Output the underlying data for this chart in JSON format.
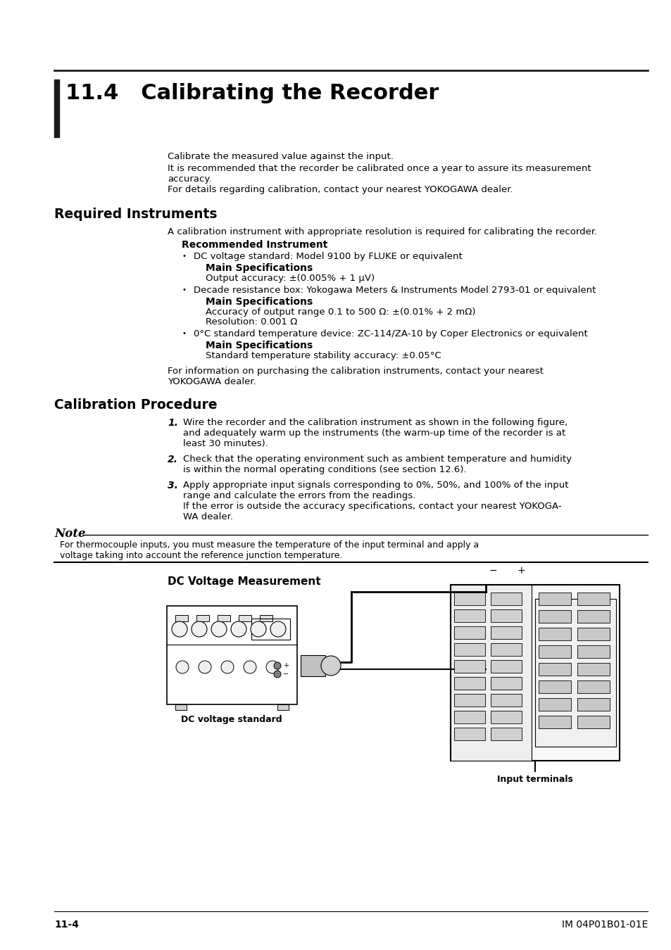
{
  "bg_color": "#ffffff",
  "title": "11.4   Calibrating the Recorder",
  "section1_heading": "Required Instruments",
  "section2_heading": "Calibration Procedure",
  "intro_line1": "Calibrate the measured value against the input.",
  "intro_line2": "It is recommended that the recorder be calibrated once a year to assure its measurement",
  "intro_line2b": "accuracy.",
  "intro_line3": "For details regarding calibration, contact your nearest YOKOGAWA dealer.",
  "req_instruments_intro": "A calibration instrument with appropriate resolution is required for calibrating the recorder.",
  "rec_instrument_heading": "Recommended Instrument",
  "bullet1": "DC voltage standard: Model 9100 by FLUKE or equivalent",
  "bullet2": "Decade resistance box: Yokogawa Meters & Instruments Model 2793-01 or equivalent",
  "bullet3": "0°C standard temperature device: ZC-114/ZA-10 by Coper Electronics or equivalent",
  "main_spec": "Main Specifications",
  "spec1": "Output accuracy: ±(0.005% + 1 μV)",
  "spec2a": "Accuracy of output range 0.1 to 500 Ω: ±(0.01% + 2 mΩ)",
  "spec2b": "Resolution: 0.001 Ω",
  "spec3": "Standard temperature stability accuracy: ±0.05°C",
  "purchase1": "For information on purchasing the calibration instruments, contact your nearest",
  "purchase2": "YOKOGAWA dealer.",
  "step1a": "Wire the recorder and the calibration instrument as shown in the following figure,",
  "step1b": "and adequately warm up the instruments (the warm-up time of the recorder is at",
  "step1c": "least 30 minutes).",
  "step2a": "Check that the operating environment such as ambient temperature and humidity",
  "step2b": "is within the normal operating conditions (see section 12.6).",
  "step3a": "Apply appropriate input signals corresponding to 0%, 50%, and 100% of the input",
  "step3b": "range and calculate the errors from the readings.",
  "step3c": "If the error is outside the accuracy specifications, contact your nearest YOKOGA-",
  "step3d": "WA dealer.",
  "note_title": "Note",
  "note1": "For thermocouple inputs, you must measure the temperature of the input terminal and apply a",
  "note2": "voltage taking into account the reference junction temperature.",
  "dc_voltage_heading": "DC Voltage Measurement",
  "dc_voltage_label": "DC voltage standard",
  "input_terminals_label": "Input terminals",
  "footer_left": "11-4",
  "footer_right": "IM 04P01B01-01E"
}
